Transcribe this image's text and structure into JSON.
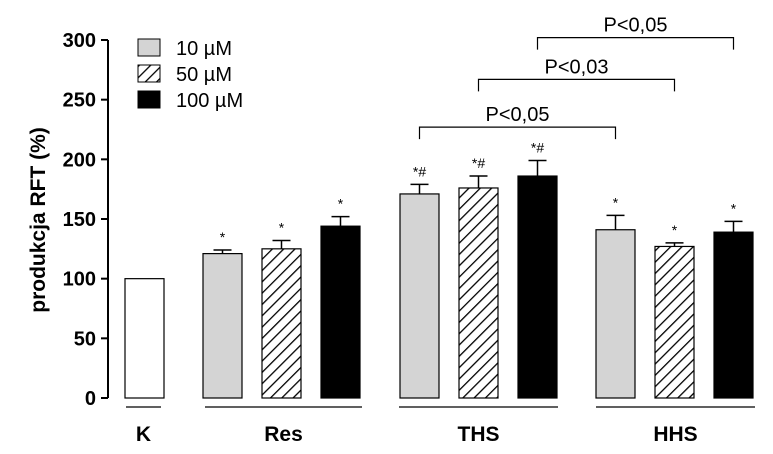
{
  "chart_data": {
    "type": "bar",
    "ylabel": "produkcja RFT (%)",
    "ylim": [
      0,
      300
    ],
    "yticks": [
      "0",
      "50",
      "100",
      "150",
      "200",
      "250",
      "300"
    ],
    "grid": false,
    "legend_position": "top-left",
    "groups": [
      "K",
      "Res",
      "THS",
      "HHS"
    ],
    "series": [
      {
        "name": "10 µM",
        "fill": "#d4d4d4"
      },
      {
        "name": "50 µM",
        "fill": "hatch"
      },
      {
        "name": "100 µM",
        "fill": "#000000"
      }
    ],
    "bars": [
      {
        "group": "K",
        "series": null,
        "value": 100,
        "error": 0,
        "sig": ""
      },
      {
        "group": "Res",
        "series": "10 µM",
        "value": 121,
        "error": 3,
        "sig": "*"
      },
      {
        "group": "Res",
        "series": "50 µM",
        "value": 125,
        "error": 7,
        "sig": "*"
      },
      {
        "group": "Res",
        "series": "100 µM",
        "value": 144,
        "error": 8,
        "sig": "*"
      },
      {
        "group": "THS",
        "series": "10 µM",
        "value": 171,
        "error": 8,
        "sig": "*#"
      },
      {
        "group": "THS",
        "series": "50 µM",
        "value": 176,
        "error": 10,
        "sig": "*#"
      },
      {
        "group": "THS",
        "series": "100 µM",
        "value": 186,
        "error": 13,
        "sig": "*#"
      },
      {
        "group": "HHS",
        "series": "10 µM",
        "value": 141,
        "error": 12,
        "sig": "*"
      },
      {
        "group": "HHS",
        "series": "50 µM",
        "value": 127,
        "error": 3,
        "sig": "*"
      },
      {
        "group": "HHS",
        "series": "100 µM",
        "value": 139,
        "error": 9,
        "sig": "*"
      }
    ],
    "comparisons": [
      {
        "label": "P<0,05",
        "from_bar": 4,
        "to_bar": 7,
        "y": 227
      },
      {
        "label": "P<0,03",
        "from_bar": 5,
        "to_bar": 8,
        "y": 267
      },
      {
        "label": "P<0,05",
        "from_bar": 6,
        "to_bar": 9,
        "y": 302
      }
    ]
  }
}
